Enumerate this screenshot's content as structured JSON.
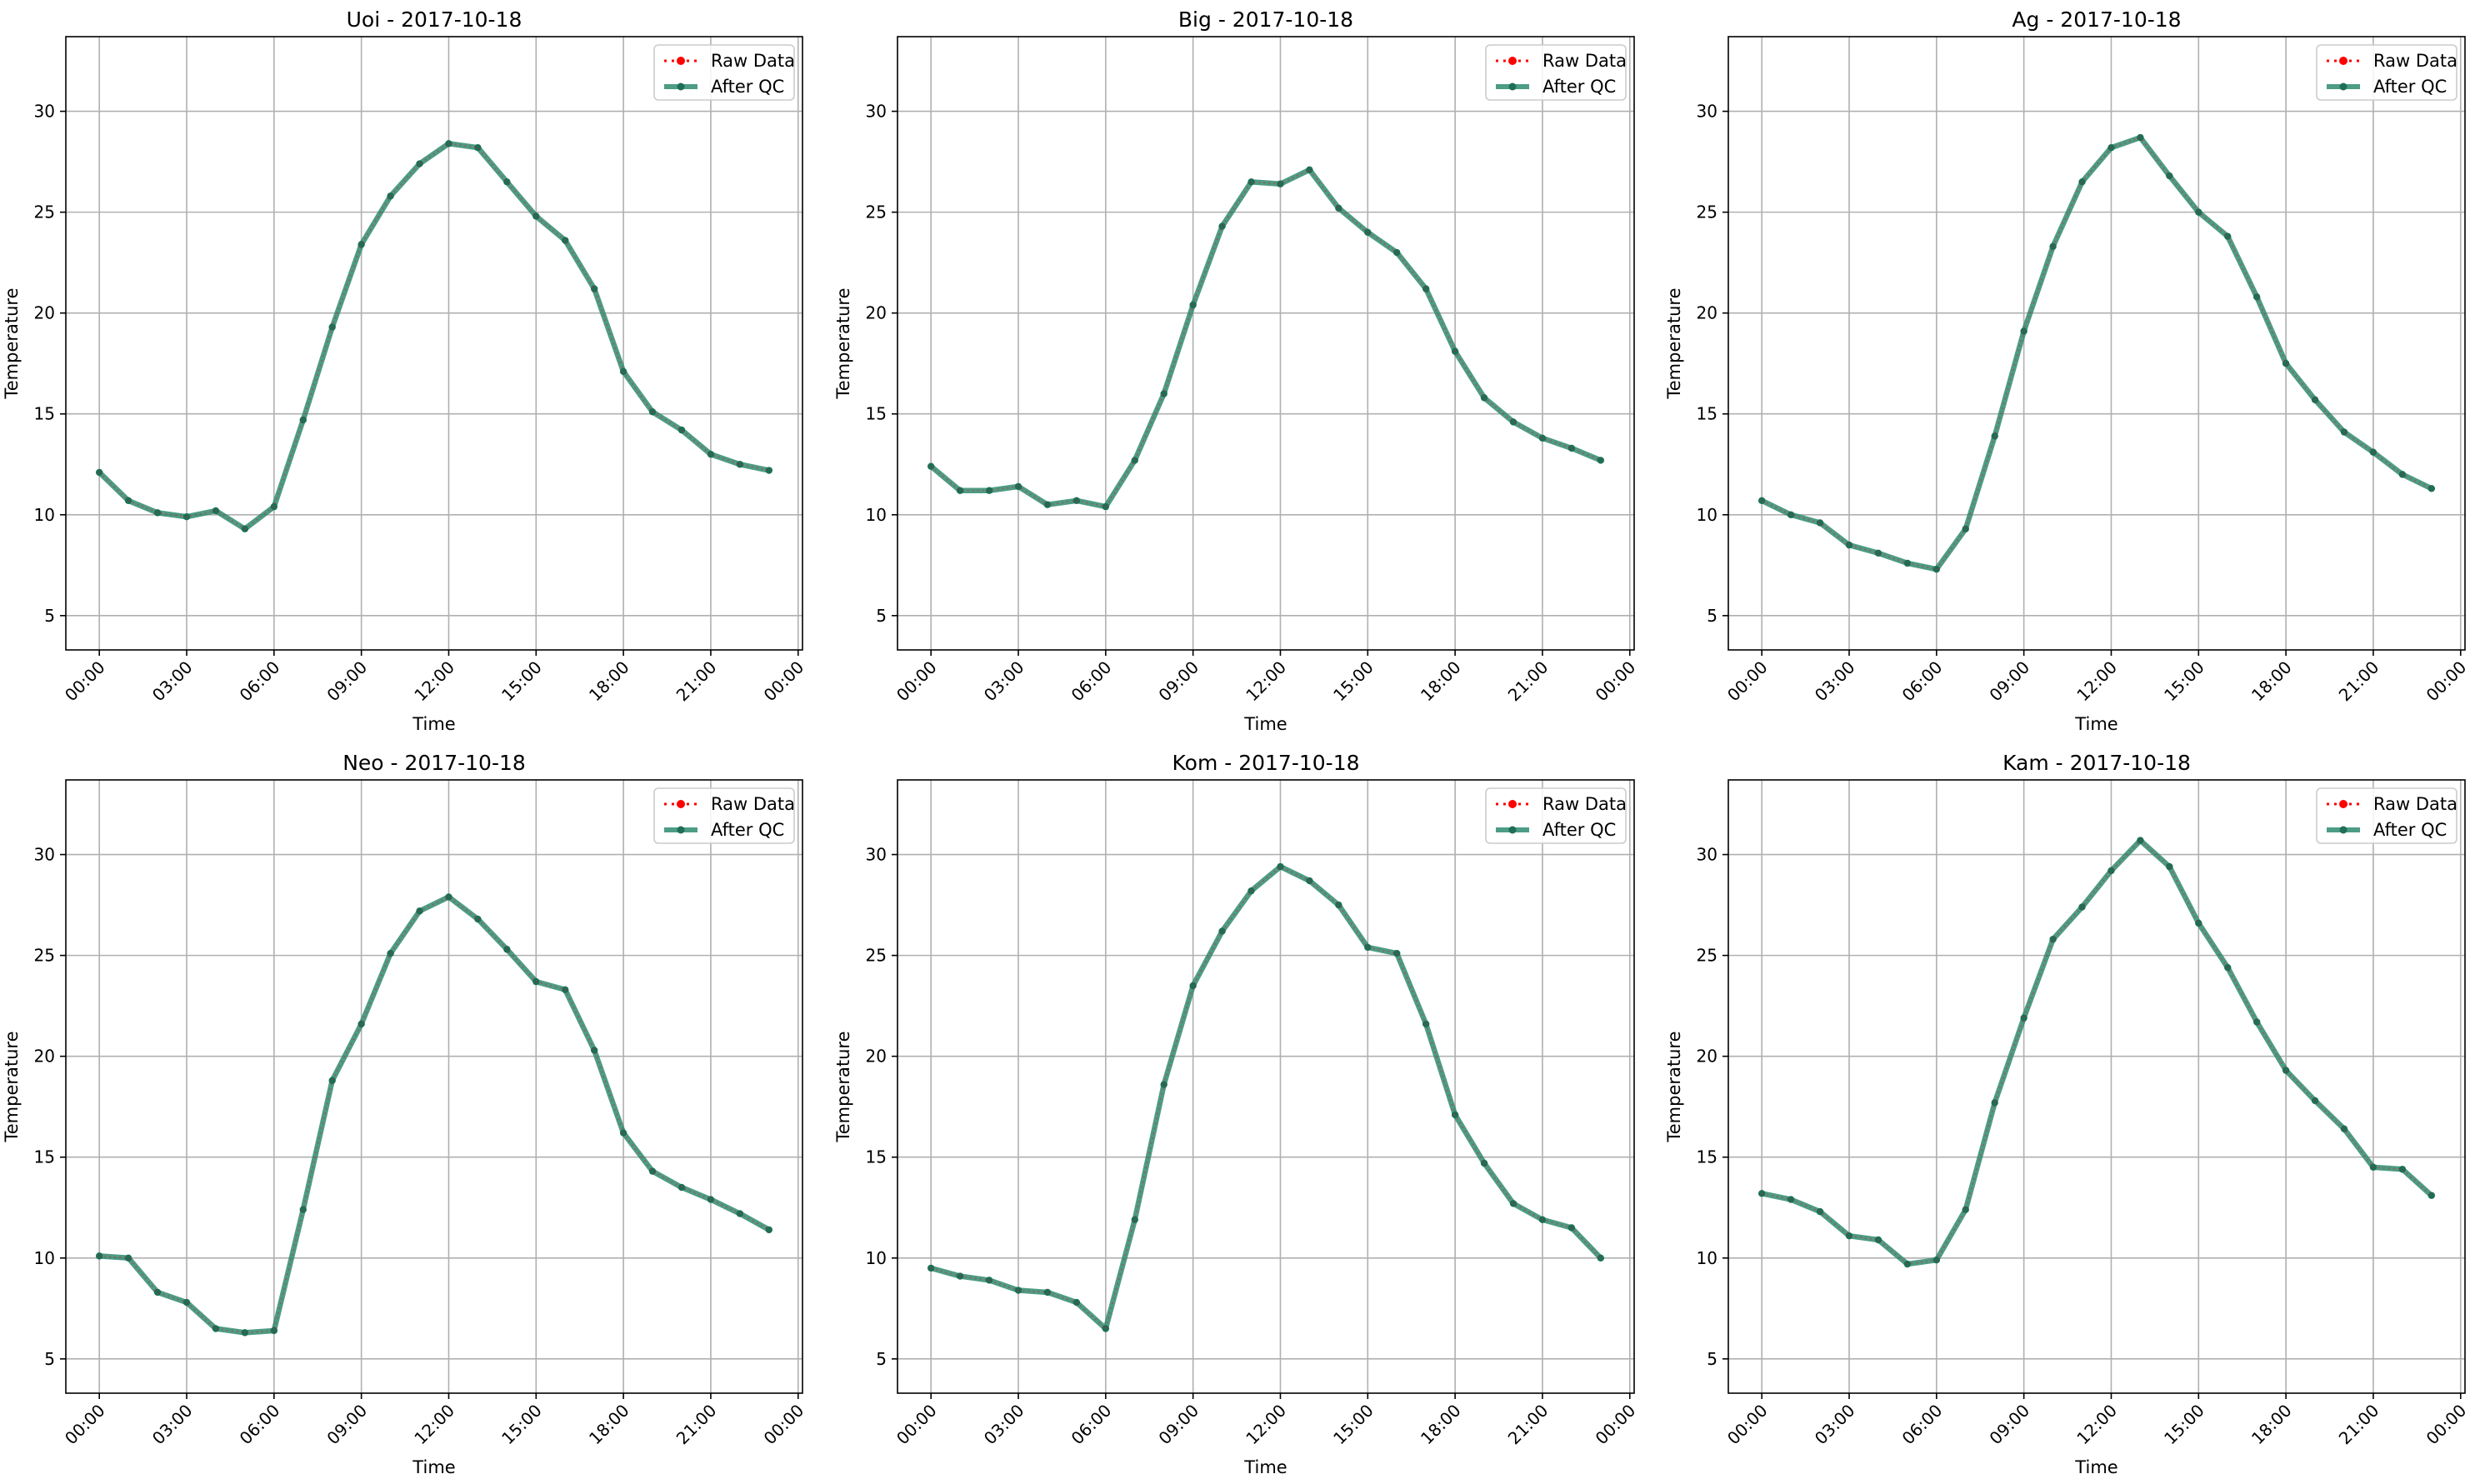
{
  "figure": {
    "raw_legend": "Raw Data",
    "qc_legend": "After QC",
    "xlabel": "Time",
    "ylabel": "Temperature",
    "colors": {
      "raw": "#ff0000",
      "qc": "#2e8b70",
      "qc_marker": "#1f6e57",
      "grid": "#b0b0b0"
    }
  },
  "chart_data": [
    {
      "type": "line",
      "title": "Uoi - 2017-10-18",
      "xlabel": "Time",
      "ylabel": "Temperature",
      "ylim": [
        3.3,
        33.7
      ],
      "xlim_hours": [
        -1.15,
        24.15
      ],
      "yticks": [
        5,
        10,
        15,
        20,
        25,
        30
      ],
      "xticks": [
        "00:00",
        "03:00",
        "06:00",
        "09:00",
        "12:00",
        "15:00",
        "18:00",
        "21:00",
        "00:00"
      ],
      "grid": true,
      "legend_position": "upper right",
      "x_hours": [
        0,
        1,
        2,
        3,
        4,
        5,
        6,
        7,
        8,
        9,
        10,
        11,
        12,
        13,
        14,
        15,
        16,
        17,
        18,
        19,
        20,
        21,
        22,
        23
      ],
      "series": [
        {
          "name": "Raw Data",
          "values": [
            12.1,
            10.7,
            10.1,
            9.9,
            10.2,
            9.3,
            10.4,
            14.7,
            19.3,
            23.4,
            25.8,
            27.4,
            28.4,
            28.2,
            26.5,
            24.8,
            23.6,
            21.2,
            17.1,
            15.1,
            14.2,
            13.0,
            12.5,
            12.2
          ]
        },
        {
          "name": "After QC",
          "values": [
            12.1,
            10.7,
            10.1,
            9.9,
            10.2,
            9.3,
            10.4,
            14.7,
            19.3,
            23.4,
            25.8,
            27.4,
            28.4,
            28.2,
            26.5,
            24.8,
            23.6,
            21.2,
            17.1,
            15.1,
            14.2,
            13.0,
            12.5,
            12.2
          ]
        }
      ]
    },
    {
      "type": "line",
      "title": "Big - 2017-10-18",
      "xlabel": "Time",
      "ylabel": "Temperature",
      "ylim": [
        3.3,
        33.7
      ],
      "xlim_hours": [
        -1.15,
        24.15
      ],
      "yticks": [
        5,
        10,
        15,
        20,
        25,
        30
      ],
      "xticks": [
        "00:00",
        "03:00",
        "06:00",
        "09:00",
        "12:00",
        "15:00",
        "18:00",
        "21:00",
        "00:00"
      ],
      "grid": true,
      "legend_position": "upper right",
      "x_hours": [
        0,
        1,
        2,
        3,
        4,
        5,
        6,
        7,
        8,
        9,
        10,
        11,
        12,
        13,
        14,
        15,
        16,
        17,
        18,
        19,
        20,
        21,
        22,
        23
      ],
      "series": [
        {
          "name": "Raw Data",
          "values": [
            12.4,
            11.2,
            11.2,
            11.4,
            10.5,
            10.7,
            10.4,
            12.7,
            16.0,
            20.4,
            24.3,
            26.5,
            26.4,
            27.1,
            25.2,
            24.0,
            23.0,
            21.2,
            18.1,
            15.8,
            14.6,
            13.8,
            13.3,
            12.7
          ]
        },
        {
          "name": "After QC",
          "values": [
            12.4,
            11.2,
            11.2,
            11.4,
            10.5,
            10.7,
            10.4,
            12.7,
            16.0,
            20.4,
            24.3,
            26.5,
            26.4,
            27.1,
            25.2,
            24.0,
            23.0,
            21.2,
            18.1,
            15.8,
            14.6,
            13.8,
            13.3,
            12.7
          ]
        }
      ]
    },
    {
      "type": "line",
      "title": "Ag - 2017-10-18",
      "xlabel": "Time",
      "ylabel": "Temperature",
      "ylim": [
        3.3,
        33.7
      ],
      "xlim_hours": [
        -1.15,
        24.15
      ],
      "yticks": [
        5,
        10,
        15,
        20,
        25,
        30
      ],
      "xticks": [
        "00:00",
        "03:00",
        "06:00",
        "09:00",
        "12:00",
        "15:00",
        "18:00",
        "21:00",
        "00:00"
      ],
      "grid": true,
      "legend_position": "upper right",
      "x_hours": [
        0,
        1,
        2,
        3,
        4,
        5,
        6,
        7,
        8,
        9,
        10,
        11,
        12,
        13,
        14,
        15,
        16,
        17,
        18,
        19,
        20,
        21,
        22,
        23
      ],
      "series": [
        {
          "name": "Raw Data",
          "values": [
            10.7,
            10.0,
            9.6,
            8.5,
            8.1,
            7.6,
            7.3,
            9.3,
            13.9,
            19.1,
            23.3,
            26.5,
            28.2,
            28.7,
            26.8,
            25.0,
            23.8,
            20.8,
            17.5,
            15.7,
            14.1,
            13.1,
            12.0,
            11.3
          ]
        },
        {
          "name": "After QC",
          "values": [
            10.7,
            10.0,
            9.6,
            8.5,
            8.1,
            7.6,
            7.3,
            9.3,
            13.9,
            19.1,
            23.3,
            26.5,
            28.2,
            28.7,
            26.8,
            25.0,
            23.8,
            20.8,
            17.5,
            15.7,
            14.1,
            13.1,
            12.0,
            11.3
          ]
        }
      ]
    },
    {
      "type": "line",
      "title": "Neo - 2017-10-18",
      "xlabel": "Time",
      "ylabel": "Temperature",
      "ylim": [
        3.3,
        33.7
      ],
      "xlim_hours": [
        -1.15,
        24.15
      ],
      "yticks": [
        5,
        10,
        15,
        20,
        25,
        30
      ],
      "xticks": [
        "00:00",
        "03:00",
        "06:00",
        "09:00",
        "12:00",
        "15:00",
        "18:00",
        "21:00",
        "00:00"
      ],
      "grid": true,
      "legend_position": "upper right",
      "x_hours": [
        0,
        1,
        2,
        3,
        4,
        5,
        6,
        7,
        8,
        9,
        10,
        11,
        12,
        13,
        14,
        15,
        16,
        17,
        18,
        19,
        20,
        21,
        22,
        23
      ],
      "series": [
        {
          "name": "Raw Data",
          "values": [
            10.1,
            10.0,
            8.3,
            7.8,
            6.5,
            6.3,
            6.4,
            12.4,
            18.8,
            21.6,
            25.1,
            27.2,
            27.9,
            26.8,
            25.3,
            23.7,
            23.3,
            20.3,
            16.2,
            14.3,
            13.5,
            12.9,
            12.2,
            11.4
          ]
        },
        {
          "name": "After QC",
          "values": [
            10.1,
            10.0,
            8.3,
            7.8,
            6.5,
            6.3,
            6.4,
            12.4,
            18.8,
            21.6,
            25.1,
            27.2,
            27.9,
            26.8,
            25.3,
            23.7,
            23.3,
            20.3,
            16.2,
            14.3,
            13.5,
            12.9,
            12.2,
            11.4
          ]
        }
      ]
    },
    {
      "type": "line",
      "title": "Kom - 2017-10-18",
      "xlabel": "Time",
      "ylabel": "Temperature",
      "ylim": [
        3.3,
        33.7
      ],
      "xlim_hours": [
        -1.15,
        24.15
      ],
      "yticks": [
        5,
        10,
        15,
        20,
        25,
        30
      ],
      "xticks": [
        "00:00",
        "03:00",
        "06:00",
        "09:00",
        "12:00",
        "15:00",
        "18:00",
        "21:00",
        "00:00"
      ],
      "grid": true,
      "legend_position": "upper right",
      "x_hours": [
        0,
        1,
        2,
        3,
        4,
        5,
        6,
        7,
        8,
        9,
        10,
        11,
        12,
        13,
        14,
        15,
        16,
        17,
        18,
        19,
        20,
        21,
        22,
        23
      ],
      "series": [
        {
          "name": "Raw Data",
          "values": [
            9.5,
            9.1,
            8.9,
            8.4,
            8.3,
            7.8,
            6.5,
            11.9,
            18.6,
            23.5,
            26.2,
            28.2,
            29.4,
            28.7,
            27.5,
            25.4,
            25.1,
            21.6,
            17.1,
            14.7,
            12.7,
            11.9,
            11.5,
            10.0
          ]
        },
        {
          "name": "After QC",
          "values": [
            9.5,
            9.1,
            8.9,
            8.4,
            8.3,
            7.8,
            6.5,
            11.9,
            18.6,
            23.5,
            26.2,
            28.2,
            29.4,
            28.7,
            27.5,
            25.4,
            25.1,
            21.6,
            17.1,
            14.7,
            12.7,
            11.9,
            11.5,
            10.0
          ]
        }
      ]
    },
    {
      "type": "line",
      "title": "Kam - 2017-10-18",
      "xlabel": "Time",
      "ylabel": "Temperature",
      "ylim": [
        3.3,
        33.7
      ],
      "xlim_hours": [
        -1.15,
        24.15
      ],
      "yticks": [
        5,
        10,
        15,
        20,
        25,
        30
      ],
      "xticks": [
        "00:00",
        "03:00",
        "06:00",
        "09:00",
        "12:00",
        "15:00",
        "18:00",
        "21:00",
        "00:00"
      ],
      "grid": true,
      "legend_position": "upper right",
      "x_hours": [
        0,
        1,
        2,
        3,
        4,
        5,
        6,
        7,
        8,
        9,
        10,
        11,
        12,
        13,
        14,
        15,
        16,
        17,
        18,
        19,
        20,
        21,
        22,
        23
      ],
      "series": [
        {
          "name": "Raw Data",
          "values": [
            13.2,
            12.9,
            12.3,
            11.1,
            10.9,
            9.7,
            9.9,
            12.4,
            17.7,
            21.9,
            25.8,
            27.4,
            29.2,
            30.7,
            29.4,
            26.6,
            24.4,
            21.7,
            19.3,
            17.8,
            16.4,
            14.5,
            14.4,
            13.1
          ]
        },
        {
          "name": "After QC",
          "values": [
            13.2,
            12.9,
            12.3,
            11.1,
            10.9,
            9.7,
            9.9,
            12.4,
            17.7,
            21.9,
            25.8,
            27.4,
            29.2,
            30.7,
            29.4,
            26.6,
            24.4,
            21.7,
            19.3,
            17.8,
            16.4,
            14.5,
            14.4,
            13.1
          ]
        }
      ]
    }
  ]
}
